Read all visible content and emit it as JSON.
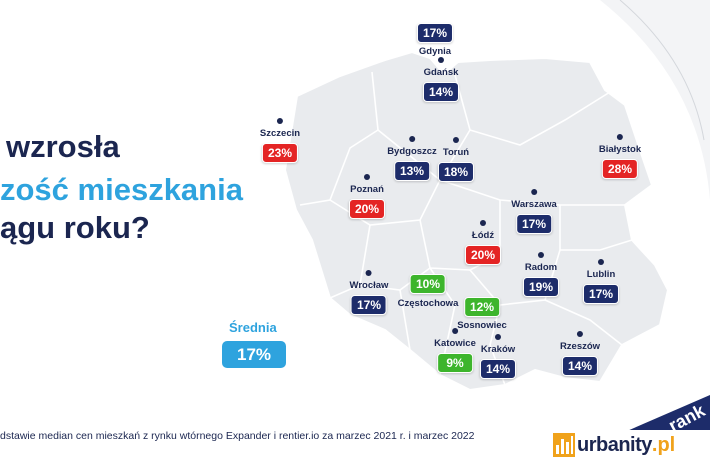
{
  "headline": {
    "line1": "wzrosła",
    "line2": "zość mieszkania",
    "line3": "ągu roku?"
  },
  "colors": {
    "navy": "#1d2c6a",
    "red": "#e42424",
    "green": "#3db52c",
    "accent_blue": "#2ea3de",
    "map_fill": "#e9ebee"
  },
  "cities": [
    {
      "name": "Gdynia",
      "value": "17%",
      "color": "navy",
      "label_above": true
    },
    {
      "name": "Gdańsk",
      "value": "14%",
      "color": "navy"
    },
    {
      "name": "Szczecin",
      "value": "23%",
      "color": "red"
    },
    {
      "name": "Bydgoszcz",
      "value": "13%",
      "color": "navy"
    },
    {
      "name": "Toruń",
      "value": "18%",
      "color": "navy"
    },
    {
      "name": "Białystok",
      "value": "28%",
      "color": "red"
    },
    {
      "name": "Poznań",
      "value": "20%",
      "color": "red"
    },
    {
      "name": "Warszawa",
      "value": "17%",
      "color": "navy"
    },
    {
      "name": "Łódź",
      "value": "20%",
      "color": "red"
    },
    {
      "name": "Radom",
      "value": "19%",
      "color": "navy"
    },
    {
      "name": "Lublin",
      "value": "17%",
      "color": "navy"
    },
    {
      "name": "Wrocław",
      "value": "17%",
      "color": "navy"
    },
    {
      "name": "Częstochowa",
      "value": "10%",
      "color": "green",
      "label_above": true
    },
    {
      "name": "Sosnowiec",
      "value": "12%",
      "color": "green",
      "label_above": true
    },
    {
      "name": "Katowice",
      "value": "9%",
      "color": "green"
    },
    {
      "name": "Kraków",
      "value": "14%",
      "color": "navy"
    },
    {
      "name": "Rzeszów",
      "value": "14%",
      "color": "navy"
    }
  ],
  "average": {
    "label": "Średnia",
    "value": "17%"
  },
  "footnote": "dstawie median cen mieszkań z rynku wtórnego Expander i rentier.io za marzec 2021 r. i marzec 2022",
  "logo": {
    "icon": "building-bars-icon",
    "text": "urbanity",
    "tld": ".pl"
  },
  "corner_text": "rank"
}
